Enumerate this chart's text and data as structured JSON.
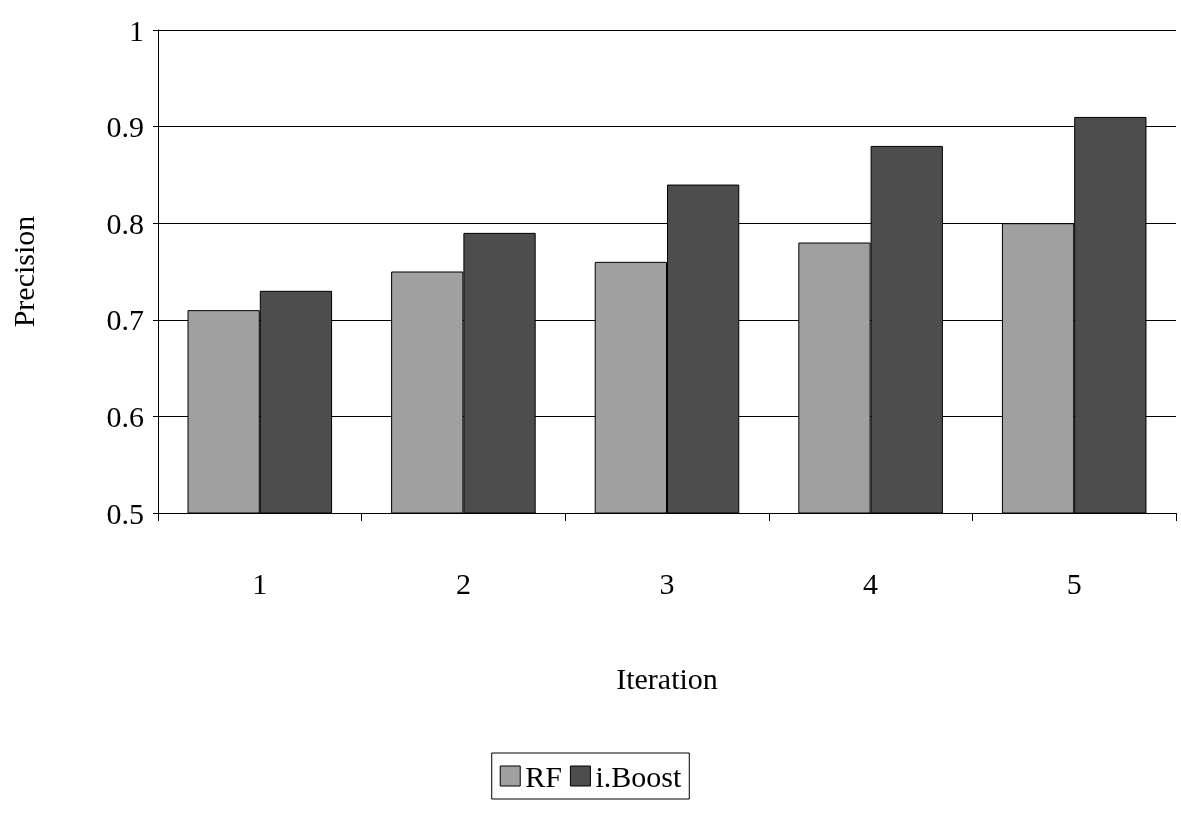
{
  "chart_data": {
    "type": "bar",
    "xlabel": "Iteration",
    "ylabel": "Precision",
    "categories": [
      "1",
      "2",
      "3",
      "4",
      "5"
    ],
    "series": [
      {
        "name": "RF",
        "color": "#a0a0a0",
        "values": [
          0.71,
          0.75,
          0.76,
          0.78,
          0.8
        ]
      },
      {
        "name": "i.Boost",
        "color": "#4d4d4d",
        "values": [
          0.73,
          0.79,
          0.84,
          0.88,
          0.91
        ]
      }
    ],
    "ylim": [
      0.5,
      1
    ],
    "yticks": [
      0.5,
      0.6,
      0.7,
      0.8,
      0.9,
      1
    ],
    "grid": "y",
    "legend": "bottom"
  }
}
